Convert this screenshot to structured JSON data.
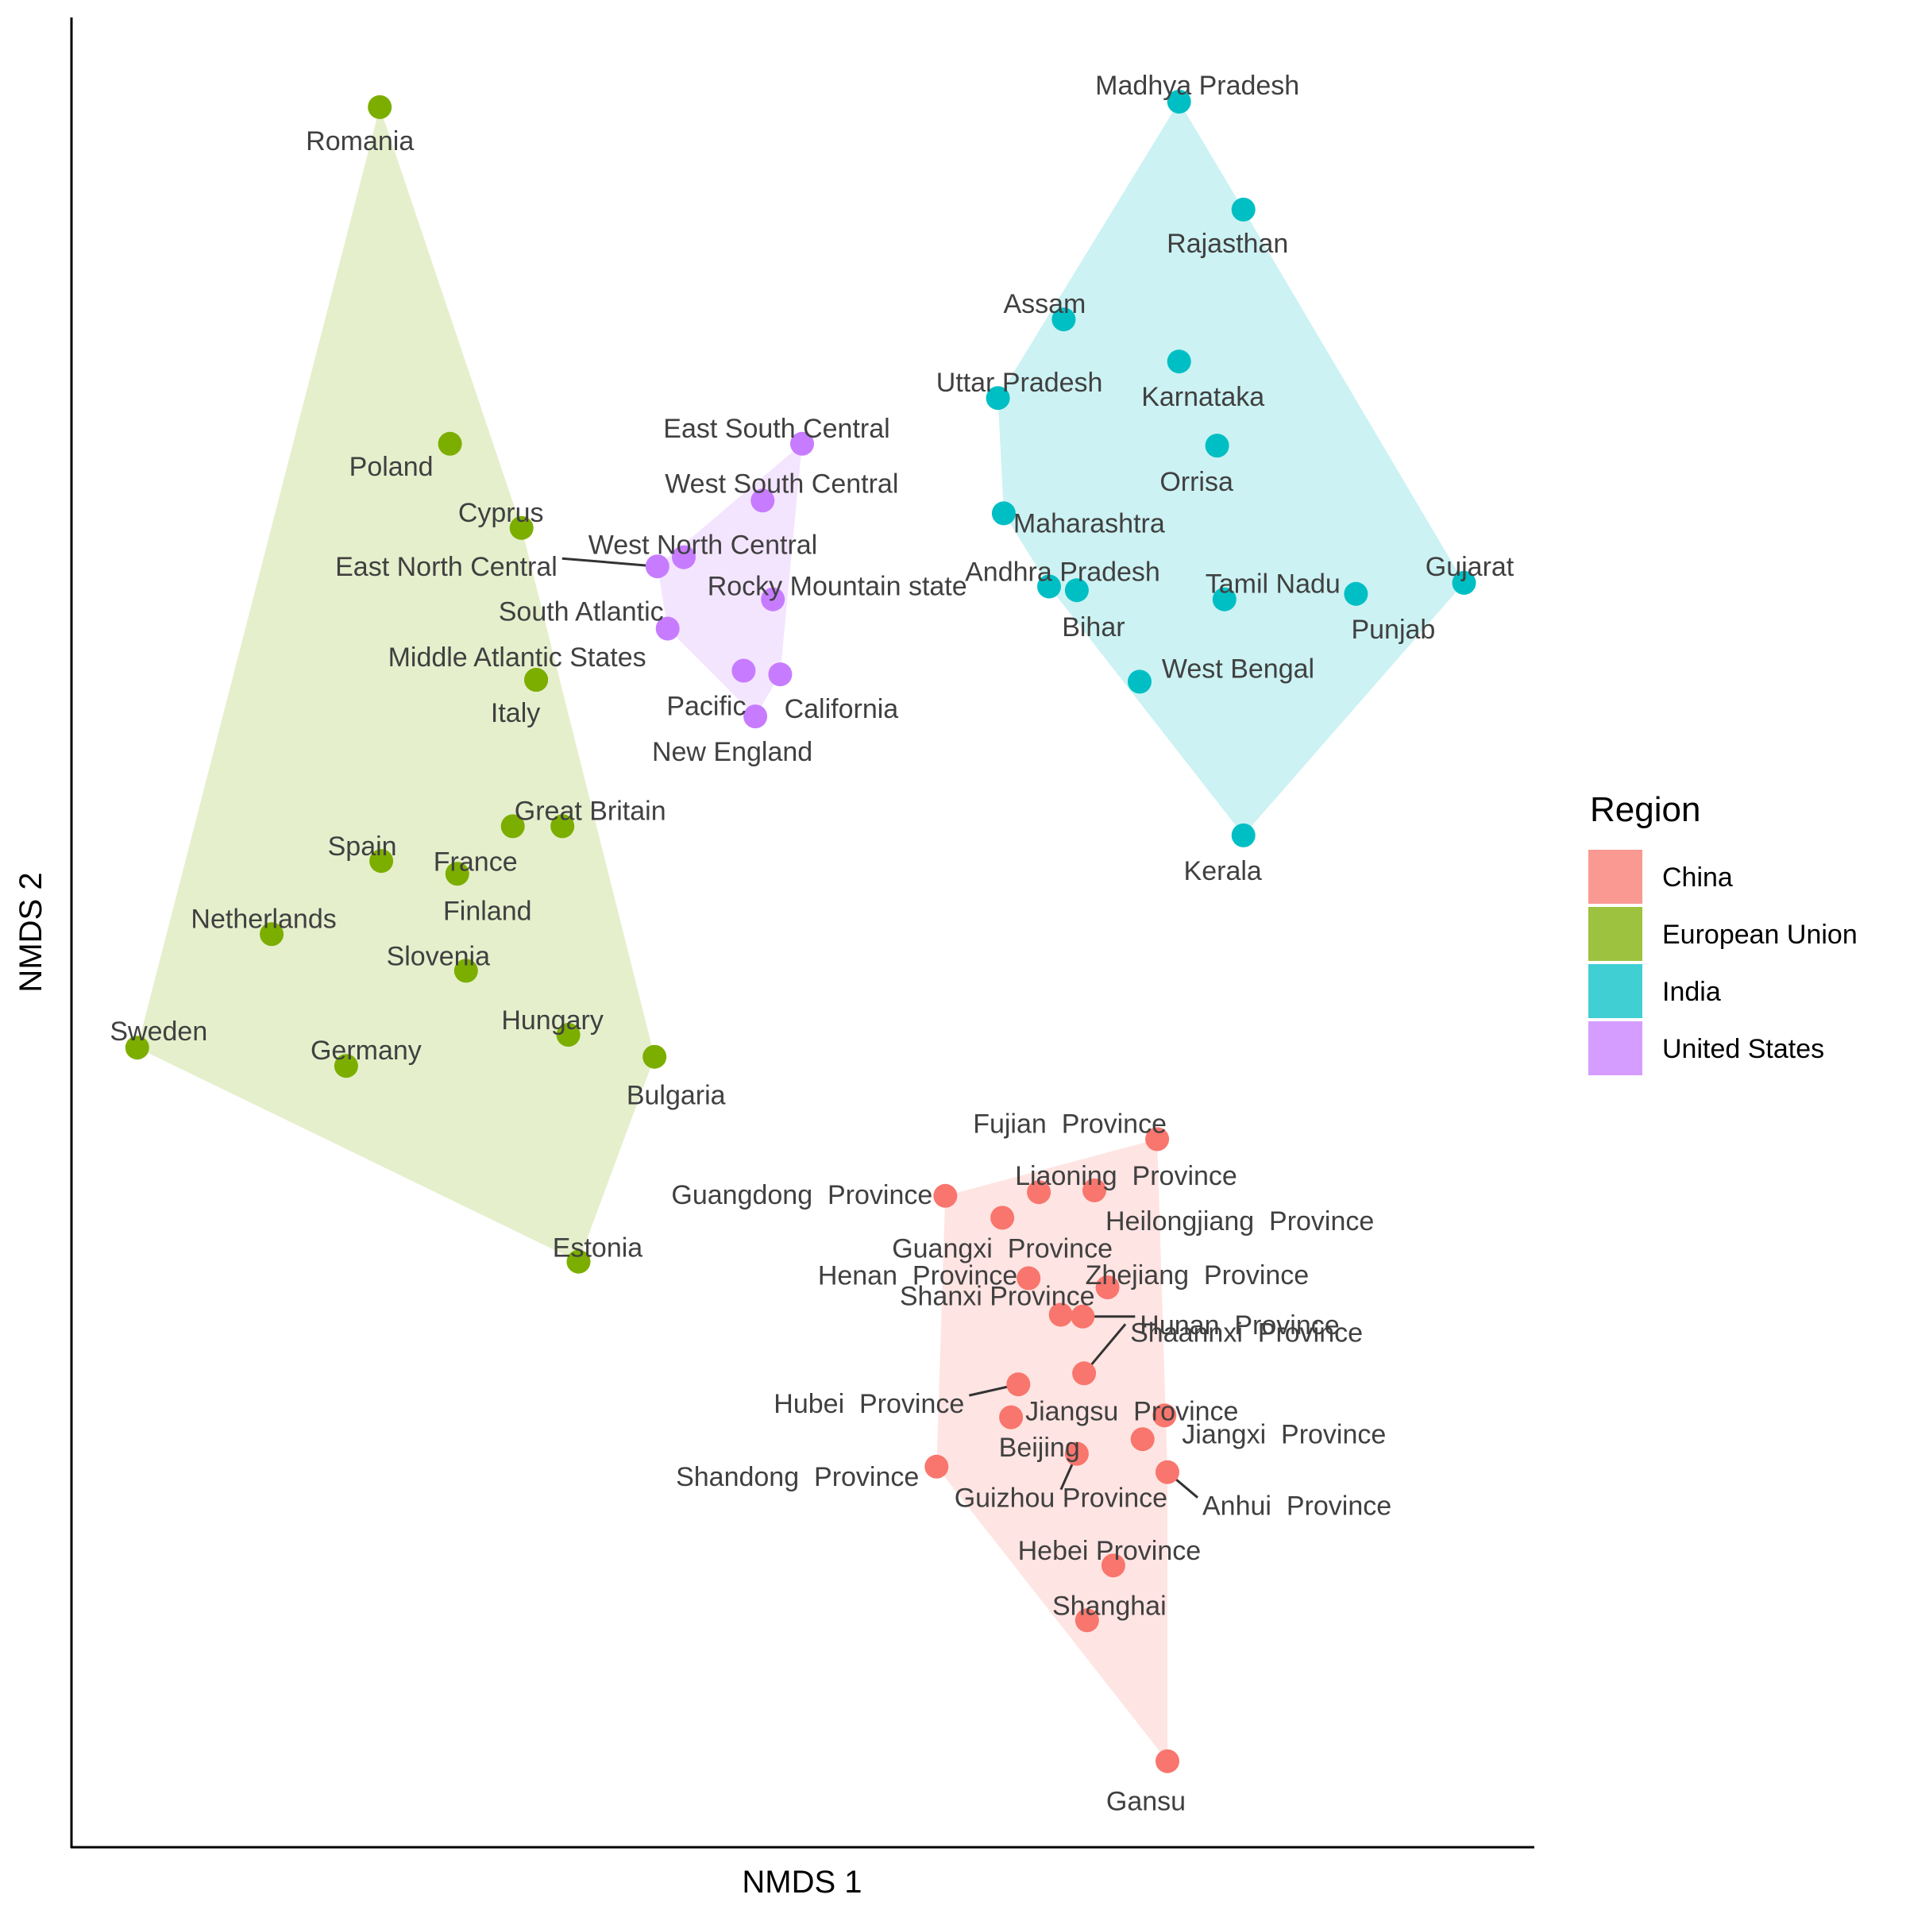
{
  "chart_data": {
    "type": "scatter",
    "xlabel": "NMDS 1",
    "ylabel": "NMDS 2",
    "xlim": [
      0,
      1
    ],
    "ylim": [
      0,
      1
    ],
    "grid": false,
    "hulls": true,
    "legend": {
      "title": "Region",
      "position": "right"
    },
    "series": [
      {
        "name": "China",
        "color": "#F8766D",
        "points": [
          {
            "label": "Fujian  Province",
            "x": 0.743,
            "y": 0.387
          },
          {
            "label": "Liaoning  Province",
            "x": 0.662,
            "y": 0.358
          },
          {
            "label": "Heilongjiang  Province",
            "x": 0.7,
            "y": 0.359
          },
          {
            "label": "Guangdong  Province",
            "x": 0.598,
            "y": 0.356
          },
          {
            "label": "Guangxi  Province",
            "x": 0.637,
            "y": 0.344
          },
          {
            "label": "Zhejiang  Province",
            "x": 0.709,
            "y": 0.306
          },
          {
            "label": "Henan  Province",
            "x": 0.655,
            "y": 0.311
          },
          {
            "label": "Hunan  Province",
            "x": 0.692,
            "y": 0.29
          },
          {
            "label": "Shanxi Province",
            "x": 0.677,
            "y": 0.291
          },
          {
            "label": "Shaannxi  Province",
            "x": 0.693,
            "y": 0.259
          },
          {
            "label": "Hubei  Province",
            "x": 0.648,
            "y": 0.253
          },
          {
            "label": "Jiangsu  Province",
            "x": 0.643,
            "y": 0.235
          },
          {
            "label": "Jiangxi  Province",
            "x": 0.748,
            "y": 0.236
          },
          {
            "label": "Shandong  Province",
            "x": 0.592,
            "y": 0.208
          },
          {
            "label": "Beijing",
            "x": 0.733,
            "y": 0.223
          },
          {
            "label": "Guizhou Province",
            "x": 0.688,
            "y": 0.215
          },
          {
            "label": "Anhui  Province",
            "x": 0.75,
            "y": 0.205
          },
          {
            "label": "Hebei Province",
            "x": 0.713,
            "y": 0.154
          },
          {
            "label": "Shanghai",
            "x": 0.695,
            "y": 0.124
          },
          {
            "label": "Gansu",
            "x": 0.75,
            "y": 0.047
          }
        ]
      },
      {
        "name": "European Union",
        "color": "#7CAE00",
        "points": [
          {
            "label": "Romania",
            "x": 0.211,
            "y": 0.951
          },
          {
            "label": "Poland",
            "x": 0.259,
            "y": 0.767
          },
          {
            "label": "Cyprus",
            "x": 0.308,
            "y": 0.721
          },
          {
            "label": "Middle Atlantic States",
            "x": 0.318,
            "y": 0.638
          },
          {
            "label": "Italy",
            "x": 0.318,
            "y": 0.638
          },
          {
            "label": "Great Britain",
            "x": 0.336,
            "y": 0.558
          },
          {
            "label": "France",
            "x": 0.302,
            "y": 0.558
          },
          {
            "label": "Spain",
            "x": 0.212,
            "y": 0.539
          },
          {
            "label": "Finland",
            "x": 0.264,
            "y": 0.532
          },
          {
            "label": "Netherlands",
            "x": 0.137,
            "y": 0.499
          },
          {
            "label": "Slovenia",
            "x": 0.27,
            "y": 0.479
          },
          {
            "label": "Sweden",
            "x": 0.045,
            "y": 0.437
          },
          {
            "label": "Hungary",
            "x": 0.34,
            "y": 0.444
          },
          {
            "label": "Bulgaria",
            "x": 0.399,
            "y": 0.432
          },
          {
            "label": "Germany",
            "x": 0.188,
            "y": 0.427
          },
          {
            "label": "Estonia",
            "x": 0.347,
            "y": 0.32
          }
        ]
      },
      {
        "name": "India",
        "color": "#00BFC4",
        "points": [
          {
            "label": "Madhya Pradesh",
            "x": 0.758,
            "y": 0.954
          },
          {
            "label": "Rajasthan",
            "x": 0.802,
            "y": 0.895
          },
          {
            "label": "Assam",
            "x": 0.679,
            "y": 0.835
          },
          {
            "label": "Karnataka",
            "x": 0.758,
            "y": 0.812
          },
          {
            "label": "Uttar Pradesh",
            "x": 0.634,
            "y": 0.792
          },
          {
            "label": "Orrisa",
            "x": 0.784,
            "y": 0.766
          },
          {
            "label": "Maharashtra",
            "x": 0.638,
            "y": 0.729
          },
          {
            "label": "Andhra Pradesh",
            "x": 0.669,
            "y": 0.689
          },
          {
            "label": "Bihar",
            "x": 0.688,
            "y": 0.687
          },
          {
            "label": "Tamil Nadu",
            "x": 0.789,
            "y": 0.682
          },
          {
            "label": "Punjab",
            "x": 0.879,
            "y": 0.685
          },
          {
            "label": "Gujarat",
            "x": 0.953,
            "y": 0.691
          },
          {
            "label": "West Bengal",
            "x": 0.731,
            "y": 0.637
          },
          {
            "label": "Kerala",
            "x": 0.802,
            "y": 0.553
          }
        ]
      },
      {
        "name": "United States",
        "color": "#C77CFF",
        "points": [
          {
            "label": "East South Central",
            "x": 0.5,
            "y": 0.767
          },
          {
            "label": "West South Central",
            "x": 0.473,
            "y": 0.736
          },
          {
            "label": "West North Central",
            "x": 0.419,
            "y": 0.705
          },
          {
            "label": "East North Central",
            "x": 0.401,
            "y": 0.7
          },
          {
            "label": "Rocky Mountain state",
            "x": 0.48,
            "y": 0.682
          },
          {
            "label": "South Atlantic",
            "x": 0.408,
            "y": 0.666
          },
          {
            "label": "Pacific",
            "x": 0.46,
            "y": 0.643
          },
          {
            "label": "California",
            "x": 0.485,
            "y": 0.641
          },
          {
            "label": "New England",
            "x": 0.468,
            "y": 0.618
          }
        ]
      }
    ]
  }
}
